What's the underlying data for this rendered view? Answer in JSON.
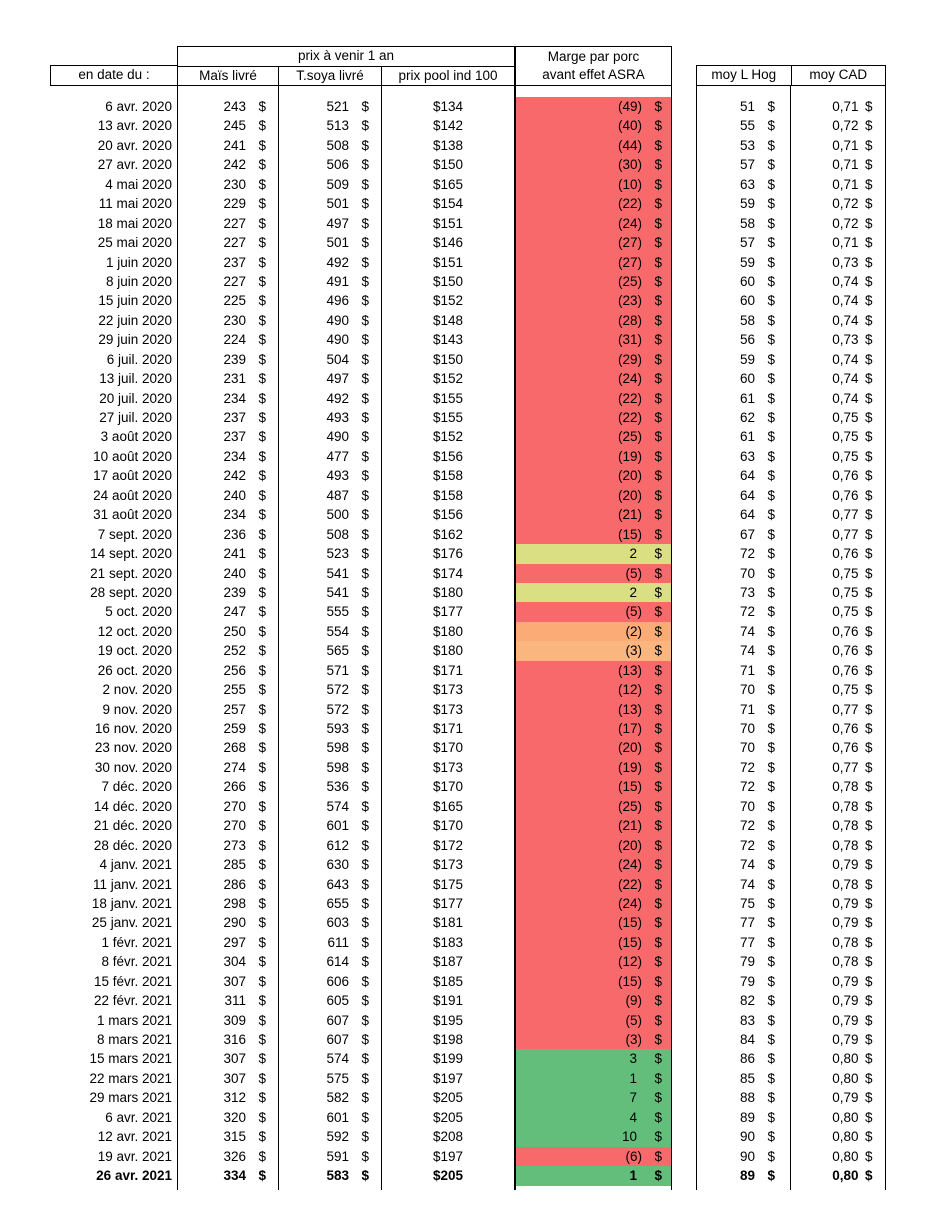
{
  "header": {
    "group_title": "prix à venir 1 an",
    "date_col": "en date du :",
    "col_mais": "Maïs livré",
    "col_soya": "T.soya livré",
    "col_pool": "prix pool ind 100",
    "col_marge_line1": "Marge par porc",
    "col_marge_line2": "avant effet ASRA",
    "col_hog": "moy L Hog",
    "col_cad": "moy CAD"
  },
  "formatting": {
    "currency_symbol": "$",
    "negative_format": "parentheses",
    "bold_last_row": true
  },
  "colors": {
    "r": "#F8696B",
    "g": "#63BE7B",
    "yg": "#D9DF82",
    "o1": "#FBAB76",
    "o2": "#FBB57E"
  },
  "row_fields": [
    "date",
    "mais_livre",
    "t_soya_livre",
    "prix_pool_ind_100",
    "marge_avant_asra",
    "marge_color",
    "moy_l_hog",
    "moy_cad"
  ],
  "rows": [
    [
      "6 avr. 2020",
      "243",
      "521",
      "$134",
      "(49)",
      "r",
      "51",
      "0,71"
    ],
    [
      "13 avr. 2020",
      "245",
      "513",
      "$142",
      "(40)",
      "r",
      "55",
      "0,72"
    ],
    [
      "20 avr. 2020",
      "241",
      "508",
      "$138",
      "(44)",
      "r",
      "53",
      "0,71"
    ],
    [
      "27 avr. 2020",
      "242",
      "506",
      "$150",
      "(30)",
      "r",
      "57",
      "0,71"
    ],
    [
      "4 mai 2020",
      "230",
      "509",
      "$165",
      "(10)",
      "r",
      "63",
      "0,71"
    ],
    [
      "11 mai 2020",
      "229",
      "501",
      "$154",
      "(22)",
      "r",
      "59",
      "0,72"
    ],
    [
      "18 mai 2020",
      "227",
      "497",
      "$151",
      "(24)",
      "r",
      "58",
      "0,72"
    ],
    [
      "25 mai 2020",
      "227",
      "501",
      "$146",
      "(27)",
      "r",
      "57",
      "0,71"
    ],
    [
      "1 juin 2020",
      "237",
      "492",
      "$151",
      "(27)",
      "r",
      "59",
      "0,73"
    ],
    [
      "8 juin 2020",
      "227",
      "491",
      "$150",
      "(25)",
      "r",
      "60",
      "0,74"
    ],
    [
      "15 juin 2020",
      "225",
      "496",
      "$152",
      "(23)",
      "r",
      "60",
      "0,74"
    ],
    [
      "22 juin 2020",
      "230",
      "490",
      "$148",
      "(28)",
      "r",
      "58",
      "0,74"
    ],
    [
      "29 juin 2020",
      "224",
      "490",
      "$143",
      "(31)",
      "r",
      "56",
      "0,73"
    ],
    [
      "6 juil. 2020",
      "239",
      "504",
      "$150",
      "(29)",
      "r",
      "59",
      "0,74"
    ],
    [
      "13 juil. 2020",
      "231",
      "497",
      "$152",
      "(24)",
      "r",
      "60",
      "0,74"
    ],
    [
      "20 juil. 2020",
      "234",
      "492",
      "$155",
      "(22)",
      "r",
      "61",
      "0,74"
    ],
    [
      "27 juil. 2020",
      "237",
      "493",
      "$155",
      "(22)",
      "r",
      "62",
      "0,75"
    ],
    [
      "3 août 2020",
      "237",
      "490",
      "$152",
      "(25)",
      "r",
      "61",
      "0,75"
    ],
    [
      "10 août 2020",
      "234",
      "477",
      "$156",
      "(19)",
      "r",
      "63",
      "0,75"
    ],
    [
      "17 août 2020",
      "242",
      "493",
      "$158",
      "(20)",
      "r",
      "64",
      "0,76"
    ],
    [
      "24 août 2020",
      "240",
      "487",
      "$158",
      "(20)",
      "r",
      "64",
      "0,76"
    ],
    [
      "31 août 2020",
      "234",
      "500",
      "$156",
      "(21)",
      "r",
      "64",
      "0,77"
    ],
    [
      "7 sept. 2020",
      "236",
      "508",
      "$162",
      "(15)",
      "r",
      "67",
      "0,77"
    ],
    [
      "14 sept. 2020",
      "241",
      "523",
      "$176",
      "2",
      "yg",
      "72",
      "0,76"
    ],
    [
      "21 sept. 2020",
      "240",
      "541",
      "$174",
      "(5)",
      "r",
      "70",
      "0,75"
    ],
    [
      "28 sept. 2020",
      "239",
      "541",
      "$180",
      "2",
      "yg",
      "73",
      "0,75"
    ],
    [
      "5 oct. 2020",
      "247",
      "555",
      "$177",
      "(5)",
      "r",
      "72",
      "0,75"
    ],
    [
      "12 oct. 2020",
      "250",
      "554",
      "$180",
      "(2)",
      "o1",
      "74",
      "0,76"
    ],
    [
      "19 oct. 2020",
      "252",
      "565",
      "$180",
      "(3)",
      "o2",
      "74",
      "0,76"
    ],
    [
      "26 oct. 2020",
      "256",
      "571",
      "$171",
      "(13)",
      "r",
      "71",
      "0,76"
    ],
    [
      "2 nov. 2020",
      "255",
      "572",
      "$173",
      "(12)",
      "r",
      "70",
      "0,75"
    ],
    [
      "9 nov. 2020",
      "257",
      "572",
      "$173",
      "(13)",
      "r",
      "71",
      "0,77"
    ],
    [
      "16 nov. 2020",
      "259",
      "593",
      "$171",
      "(17)",
      "r",
      "70",
      "0,76"
    ],
    [
      "23 nov. 2020",
      "268",
      "598",
      "$170",
      "(20)",
      "r",
      "70",
      "0,76"
    ],
    [
      "30 nov. 2020",
      "274",
      "598",
      "$173",
      "(19)",
      "r",
      "72",
      "0,77"
    ],
    [
      "7 déc. 2020",
      "266",
      "536",
      "$170",
      "(15)",
      "r",
      "72",
      "0,78"
    ],
    [
      "14 déc. 2020",
      "270",
      "574",
      "$165",
      "(25)",
      "r",
      "70",
      "0,78"
    ],
    [
      "21 déc. 2020",
      "270",
      "601",
      "$170",
      "(21)",
      "r",
      "72",
      "0,78"
    ],
    [
      "28 déc. 2020",
      "273",
      "612",
      "$172",
      "(20)",
      "r",
      "72",
      "0,78"
    ],
    [
      "4 janv. 2021",
      "285",
      "630",
      "$173",
      "(24)",
      "r",
      "74",
      "0,79"
    ],
    [
      "11 janv. 2021",
      "286",
      "643",
      "$175",
      "(22)",
      "r",
      "74",
      "0,78"
    ],
    [
      "18 janv. 2021",
      "298",
      "655",
      "$177",
      "(24)",
      "r",
      "75",
      "0,79"
    ],
    [
      "25 janv. 2021",
      "290",
      "603",
      "$181",
      "(15)",
      "r",
      "77",
      "0,79"
    ],
    [
      "1 févr. 2021",
      "297",
      "611",
      "$183",
      "(15)",
      "r",
      "77",
      "0,78"
    ],
    [
      "8 févr. 2021",
      "304",
      "614",
      "$187",
      "(12)",
      "r",
      "79",
      "0,78"
    ],
    [
      "15 févr. 2021",
      "307",
      "606",
      "$185",
      "(15)",
      "r",
      "79",
      "0,79"
    ],
    [
      "22 févr. 2021",
      "311",
      "605",
      "$191",
      "(9)",
      "r",
      "82",
      "0,79"
    ],
    [
      "1 mars 2021",
      "309",
      "607",
      "$195",
      "(5)",
      "r",
      "83",
      "0,79"
    ],
    [
      "8 mars 2021",
      "316",
      "607",
      "$198",
      "(3)",
      "r",
      "84",
      "0,79"
    ],
    [
      "15 mars 2021",
      "307",
      "574",
      "$199",
      "3",
      "g",
      "86",
      "0,80"
    ],
    [
      "22 mars 2021",
      "307",
      "575",
      "$197",
      "1",
      "g",
      "85",
      "0,80"
    ],
    [
      "29 mars 2021",
      "312",
      "582",
      "$205",
      "7",
      "g",
      "88",
      "0,79"
    ],
    [
      "6 avr. 2021",
      "320",
      "601",
      "$205",
      "4",
      "g",
      "89",
      "0,80"
    ],
    [
      "12 avr. 2021",
      "315",
      "592",
      "$208",
      "10",
      "g",
      "90",
      "0,80"
    ],
    [
      "19 avr. 2021",
      "326",
      "591",
      "$197",
      "(6)",
      "r",
      "90",
      "0,80"
    ],
    [
      "26 avr. 2021",
      "334",
      "583",
      "$205",
      "1",
      "g",
      "89",
      "0,80"
    ]
  ]
}
